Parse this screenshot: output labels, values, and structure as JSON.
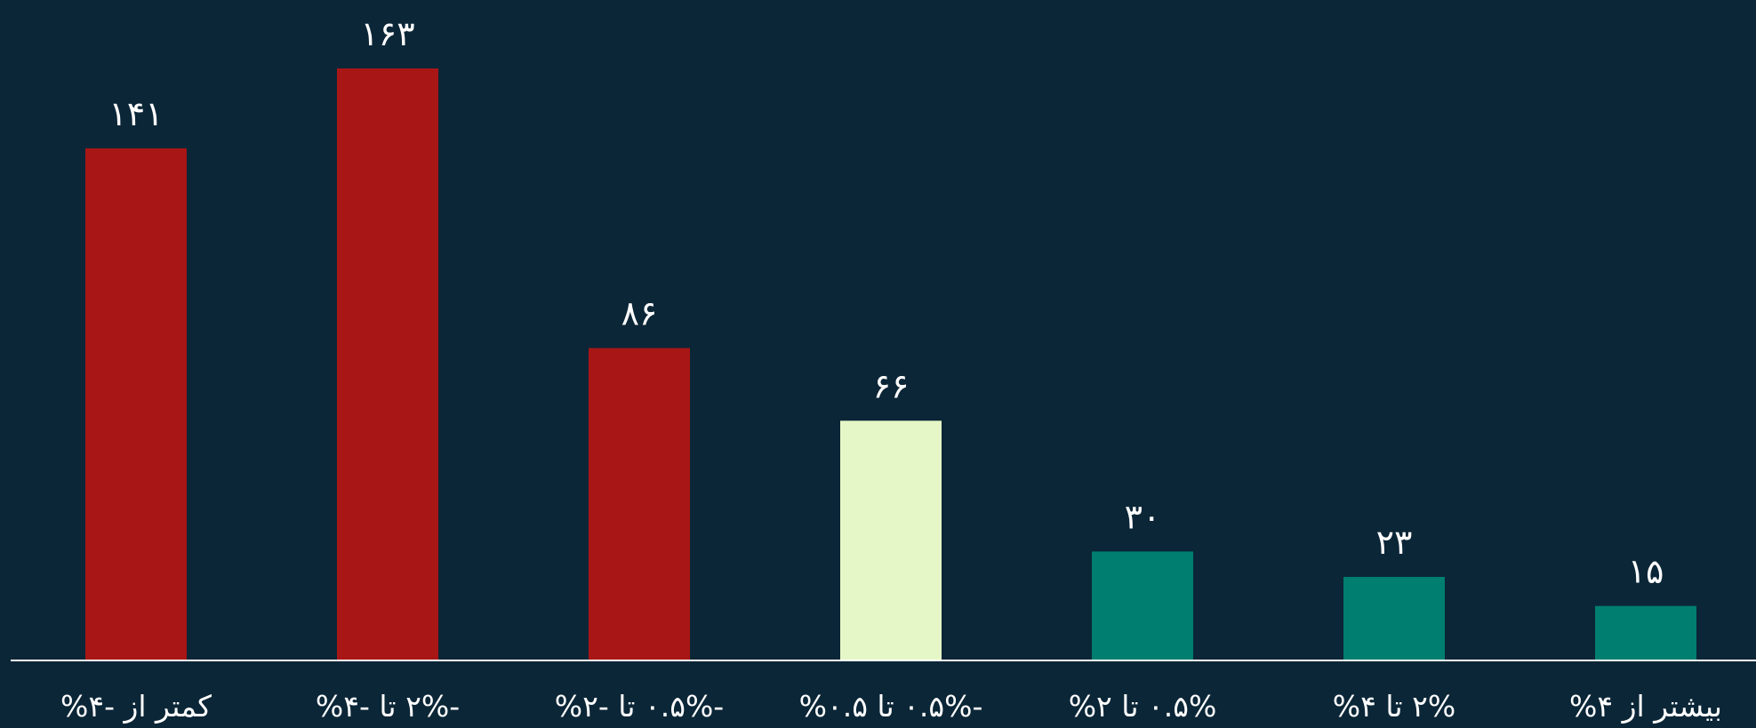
{
  "colors": {
    "background": "#0b2637",
    "negative": "#a91616",
    "neutral": "#e6f7c7",
    "positive": "#007e70",
    "axis": "#ffffff",
    "text": "#ffffff"
  },
  "chart_data": {
    "type": "bar",
    "title": "",
    "xlabel": "",
    "ylabel": "",
    "ylim": [
      0,
      180
    ],
    "grid": false,
    "legend": "none",
    "categories": [
      "کمتر از -۴%",
      "-۲% تا -۴%",
      "-۰.۵% تا -۲%",
      "-۰.۵% تا ۰.۵%",
      "۰.۵% تا ۲%",
      "۲% تا ۴%",
      "بیشتر از ۴%"
    ],
    "values": [
      141,
      163,
      86,
      66,
      30,
      23,
      15
    ],
    "value_labels": [
      "۱۴۱",
      "۱۶۳",
      "۸۶",
      "۶۶",
      "۳۰",
      "۲۳",
      "۱۵"
    ],
    "bar_colors": [
      "#a91616",
      "#a91616",
      "#a91616",
      "#e6f7c7",
      "#007e70",
      "#007e70",
      "#007e70"
    ]
  }
}
